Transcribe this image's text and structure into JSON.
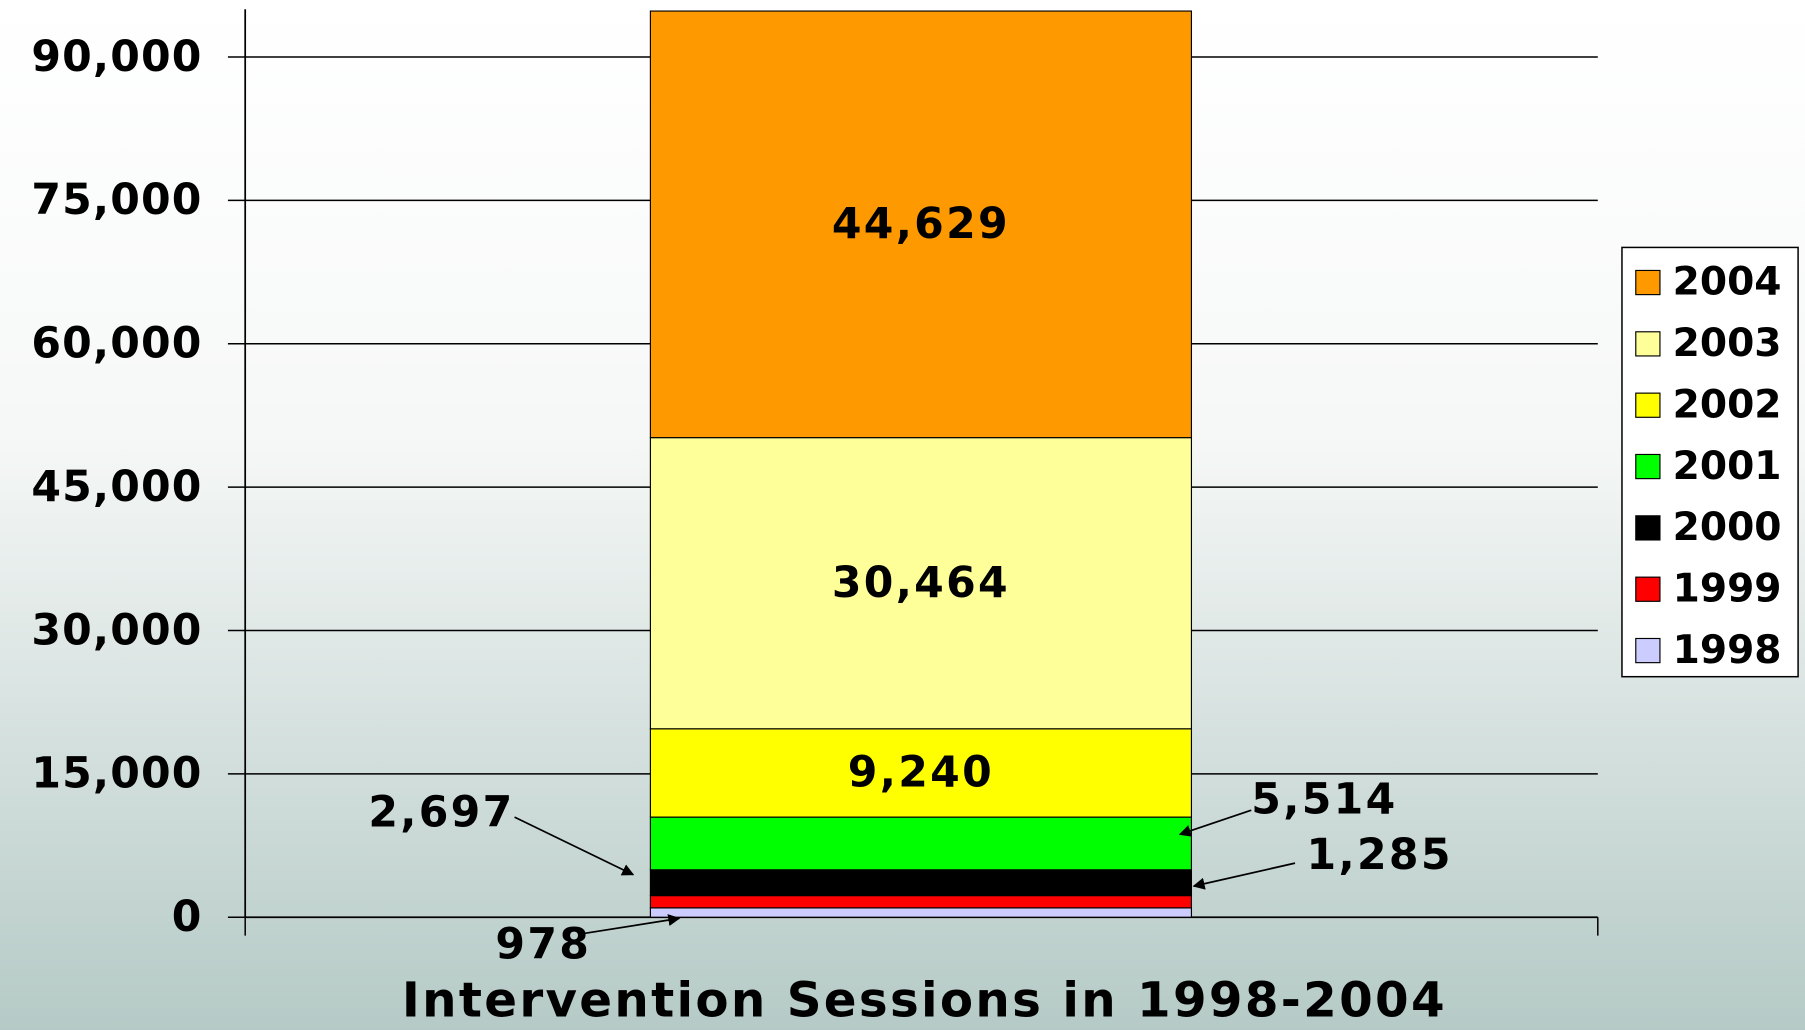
{
  "chart_data": {
    "type": "stacked_bar",
    "categories": [
      "Intervention Sessions in 1998-2004"
    ],
    "series": [
      {
        "name": "1998",
        "color": "#ccccff",
        "values": [
          978
        ],
        "value_labels": [
          "978"
        ]
      },
      {
        "name": "1999",
        "color": "#ff0000",
        "values": [
          1285
        ],
        "value_labels": [
          "1,285"
        ]
      },
      {
        "name": "2000",
        "color": "#000000",
        "values": [
          2697
        ],
        "value_labels": [
          "2,697"
        ]
      },
      {
        "name": "2001",
        "color": "#00ff00",
        "values": [
          5514
        ],
        "value_labels": [
          "5,514"
        ]
      },
      {
        "name": "2002",
        "color": "#ffff00",
        "values": [
          9240
        ],
        "value_labels": [
          "9,240"
        ]
      },
      {
        "name": "2003",
        "color": "#ffff99",
        "values": [
          30464
        ],
        "value_labels": [
          "30,464"
        ]
      },
      {
        "name": "2004",
        "color": "#ff9900",
        "values": [
          44629
        ],
        "value_labels": [
          "44,629"
        ]
      }
    ],
    "ylim": [
      0,
      95000
    ],
    "yticks": [
      0,
      {
        "value": 15000,
        "label": "15,000"
      },
      {
        "value": 30000,
        "label": "30,000"
      },
      {
        "value": 45000,
        "label": "45,000"
      },
      {
        "value": 60000,
        "label": "60,000"
      },
      {
        "value": 75000,
        "label": "75,000"
      },
      {
        "value": 90000,
        "label": "90,000"
      }
    ],
    "grid": true,
    "legend": "right"
  }
}
